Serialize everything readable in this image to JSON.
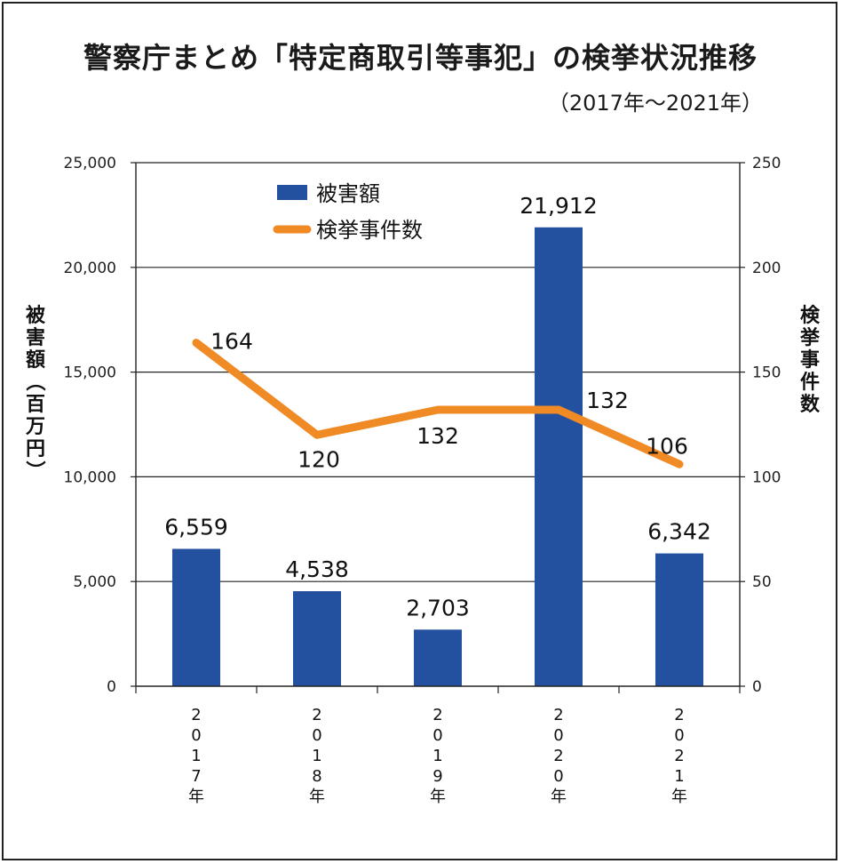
{
  "title": "警察庁まとめ「特定商取引等事犯」の検挙状況推移",
  "subtitle": "（2017年〜2021年）",
  "chart_data": {
    "type": "bar",
    "categories": [
      "2017年",
      "2018年",
      "2019年",
      "2020年",
      "2021年"
    ],
    "series": [
      {
        "name": "被害額",
        "type": "bar",
        "axis": "left",
        "color": "#2450a0",
        "values": [
          6559,
          4538,
          2703,
          21912,
          6342
        ],
        "labels": [
          "6,559",
          "4,538",
          "2,703",
          "21,912",
          "6,342"
        ]
      },
      {
        "name": "検挙事件数",
        "type": "line",
        "axis": "right",
        "color": "#f08a24",
        "values": [
          164,
          120,
          132,
          132,
          106
        ],
        "labels": [
          "164",
          "120",
          "132",
          "132",
          "106"
        ]
      }
    ],
    "ylabel": "被害額（百万円）",
    "y2label": "検挙事件数",
    "ylim": [
      0,
      25000
    ],
    "y2lim": [
      0,
      250
    ],
    "yticks": [
      "0",
      "5,000",
      "10,000",
      "15,000",
      "20,000",
      "25,000"
    ],
    "y2ticks": [
      "0",
      "50",
      "100",
      "150",
      "200",
      "250"
    ],
    "grid": true,
    "legend": "top-center"
  }
}
